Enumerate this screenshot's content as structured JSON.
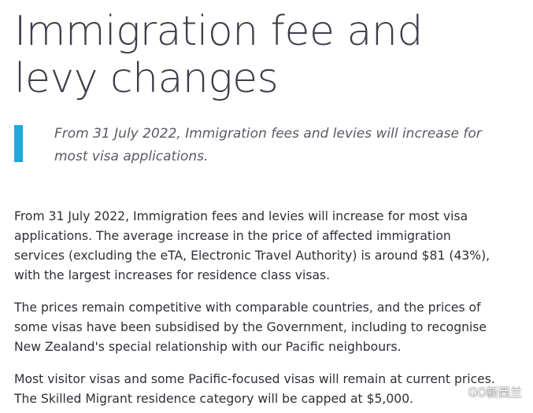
{
  "article": {
    "title": "Immigration fee and levy changes",
    "intro": "From 31 July 2022, Immigration fees and levies will increase for most visa applications.",
    "paragraphs": [
      "From 31 July 2022, Immigration fees and levies will increase for most visa applications. The average increase in the price of affected immigration services (excluding the eTA, Electronic Travel Authority) is around $81 (43%), with the largest increases for residence class visas.",
      "The prices remain competitive with comparable countries, and the prices of some visas have been subsidised by the Government, including to recognise New Zealand's special relationship with our Pacific neighbours.",
      "Most visitor visas and some Pacific-focused visas will remain at current prices. The Skilled Migrant residence category will be capped at $5,000."
    ]
  },
  "colors": {
    "accent_bar": "#1ea8df",
    "title": "#3d3d4a",
    "body": "#2f2f38"
  },
  "watermark": {
    "text": "GO新西兰",
    "icon": "wechat-icon"
  }
}
